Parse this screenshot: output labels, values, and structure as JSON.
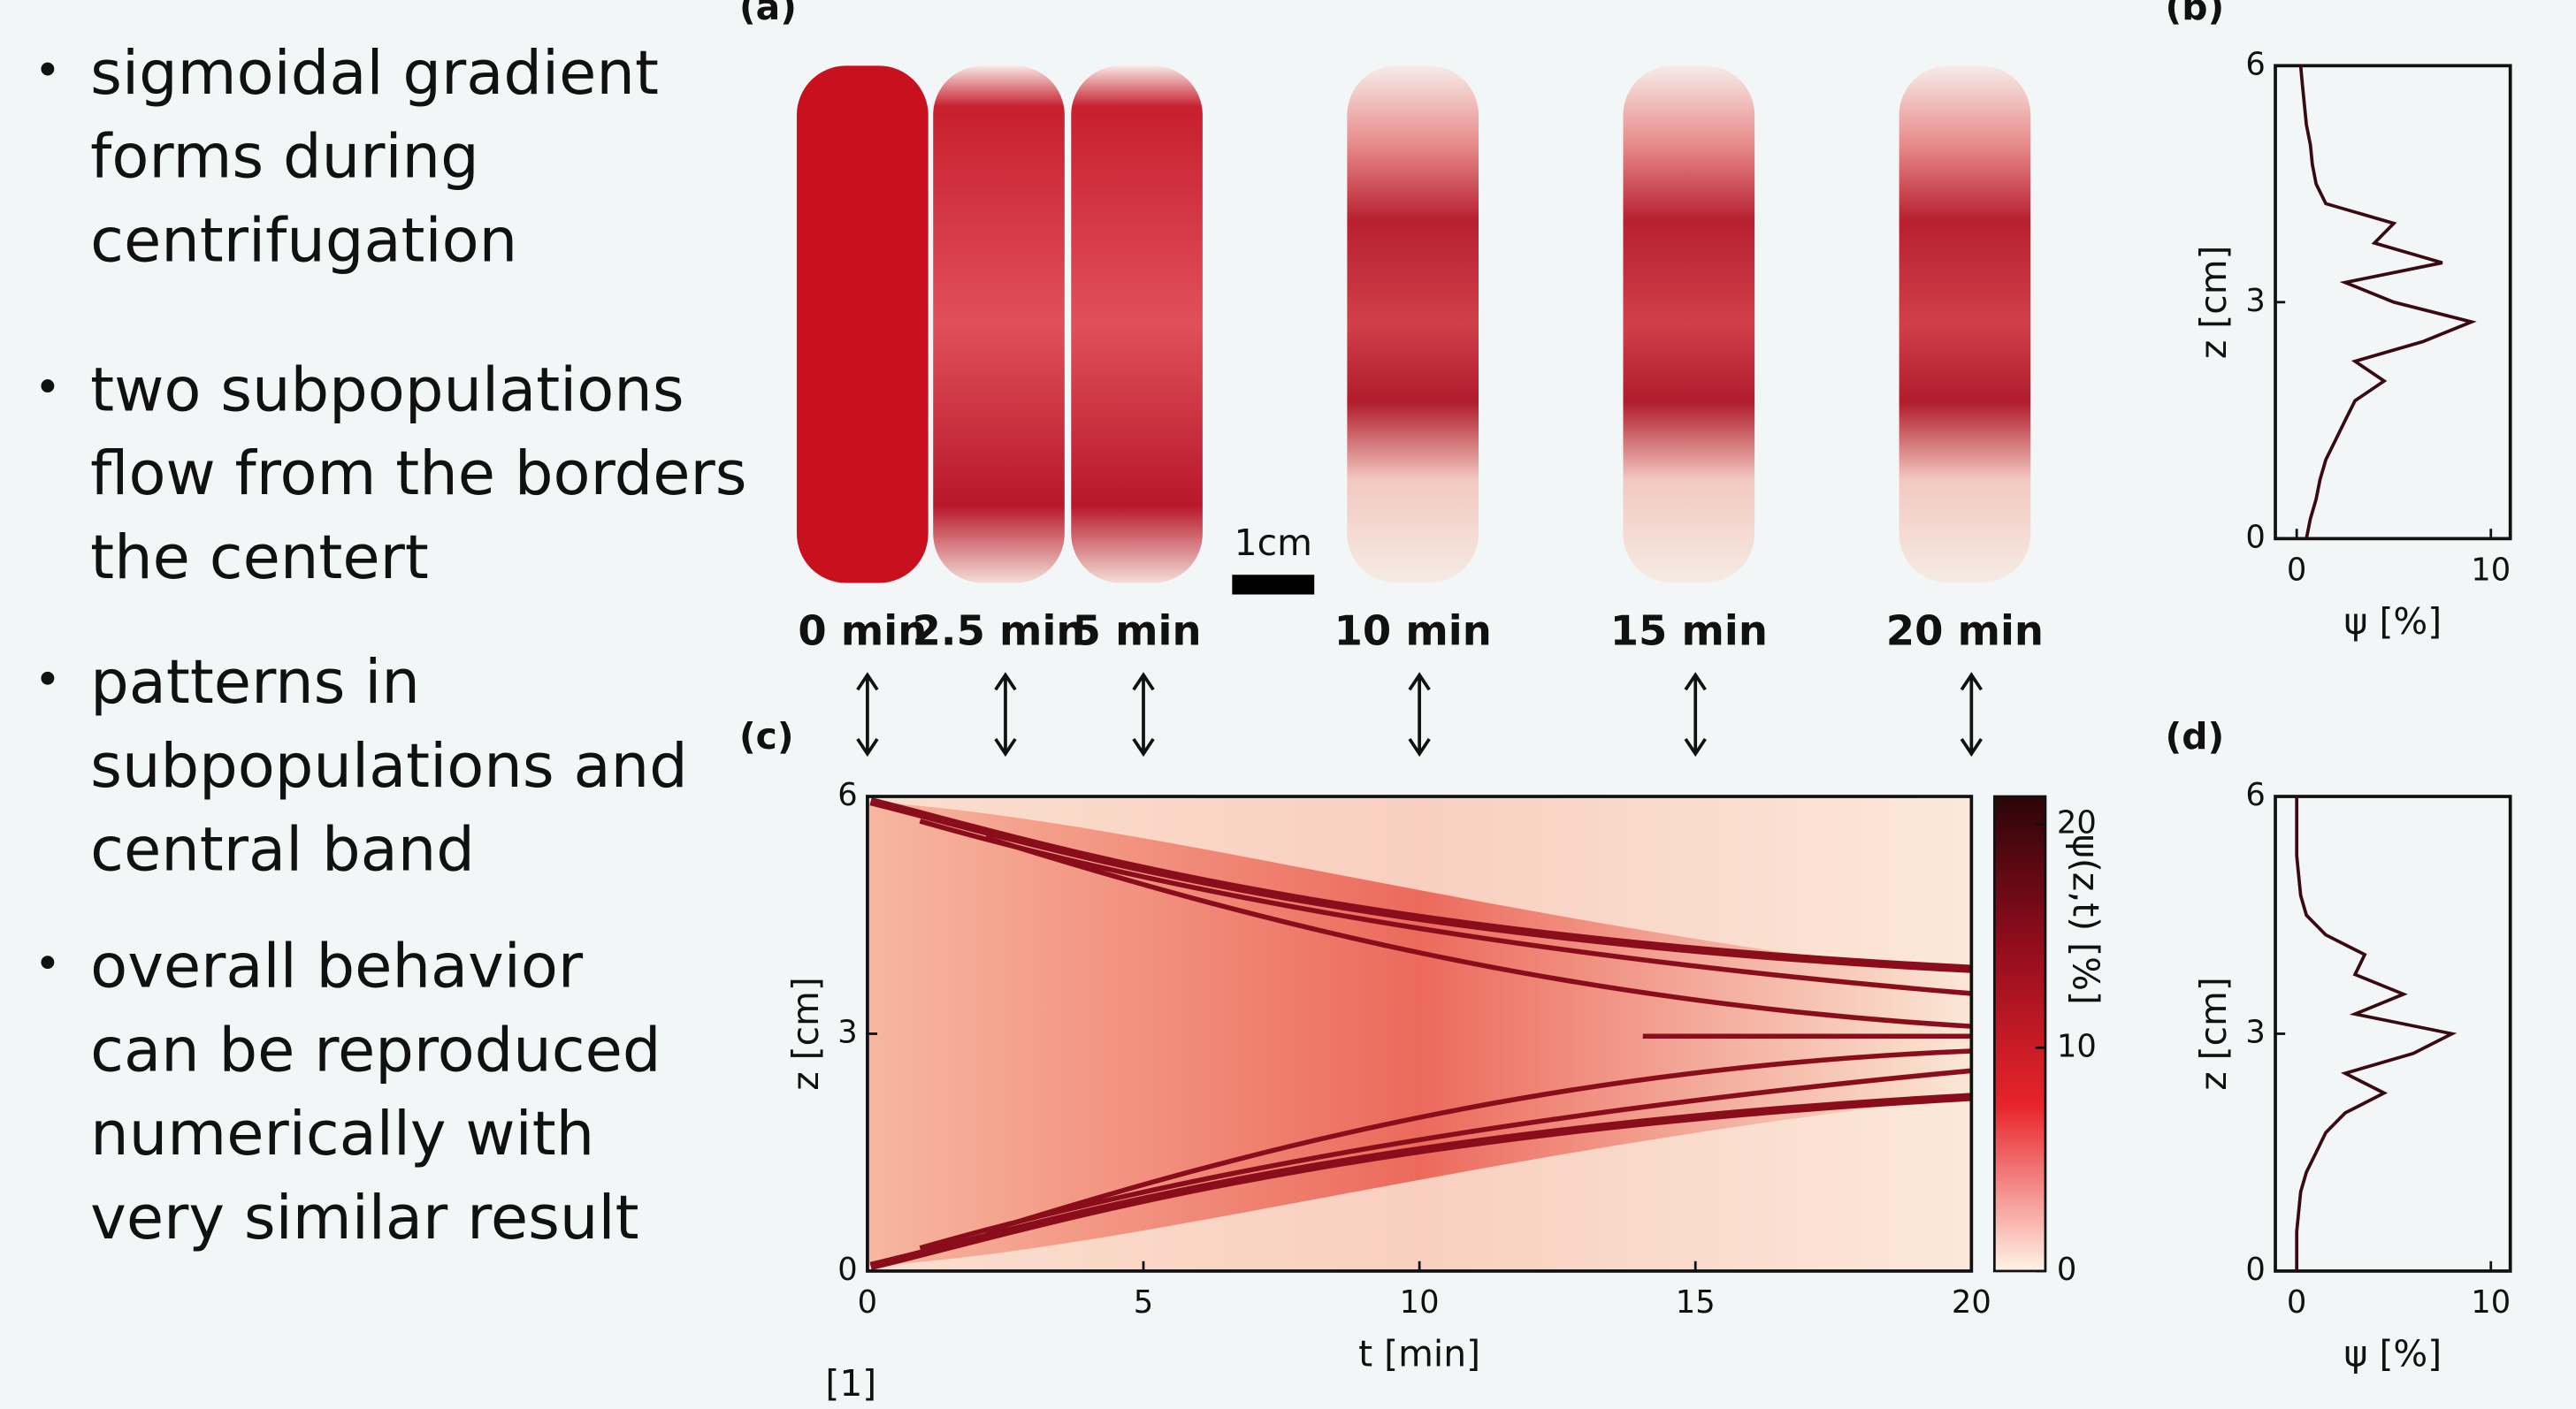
{
  "bullets": [
    [
      "sigmoidal gradient",
      "forms during",
      "centrifugation"
    ],
    [
      "two subpopulations",
      "flow from the borders",
      "the centert"
    ],
    [
      "patterns in",
      "subpopulations and",
      "central band"
    ],
    [
      "overall behavior",
      "can be reproduced",
      "numerically with",
      "very similar result"
    ]
  ],
  "figure": {
    "panel_labels": {
      "a": "(a)",
      "b": "(b)",
      "c": "(c)",
      "d": "(d)"
    },
    "tube_labels": [
      "0 min",
      "2.5 min",
      "5 min",
      "10 min",
      "15 min",
      "20 min"
    ],
    "scale_bar": "1cm",
    "citation": "[1]",
    "panel_b": {
      "xlabel": "ψ [%]",
      "ylabel": "z [cm]",
      "xlim": [
        -1.1,
        11
      ],
      "ylim": [
        0,
        6
      ],
      "xticks": [
        0,
        10
      ],
      "yticks": [
        0,
        3,
        6
      ],
      "z": [
        0,
        0.25,
        0.5,
        0.75,
        1,
        1.25,
        1.5,
        1.75,
        2,
        2.25,
        2.5,
        2.75,
        3,
        3.25,
        3.5,
        3.75,
        4,
        4.25,
        4.5,
        4.75,
        5,
        5.25,
        5.5,
        5.75,
        6
      ],
      "psi": [
        0.5,
        0.7,
        1,
        1.2,
        1.5,
        2,
        2.5,
        3,
        4.5,
        3,
        6.5,
        9,
        5,
        2.5,
        7.5,
        4,
        5,
        1.5,
        1,
        0.8,
        0.7,
        0.5,
        0.4,
        0.3,
        0.2
      ]
    },
    "panel_c": {
      "xlabel": "t [min]",
      "ylabel": "z [cm]",
      "colorbar_label": "ψ(z,t) [%]",
      "xlim": [
        0,
        20
      ],
      "ylim": [
        0,
        6
      ],
      "xticks": [
        0,
        5,
        10,
        15,
        20
      ],
      "yticks": [
        0,
        3,
        6
      ],
      "colorbar_lim": [
        0,
        21.25
      ],
      "colorbar_ticks": [
        0,
        10,
        20
      ]
    },
    "panel_d": {
      "xlabel": "ψ [%]",
      "ylabel": "z [cm]",
      "xlim": [
        -1.1,
        11
      ],
      "ylim": [
        0,
        6
      ],
      "xticks": [
        0,
        10
      ],
      "yticks": [
        0,
        3,
        6
      ],
      "z": [
        0,
        0.25,
        0.5,
        0.75,
        1,
        1.25,
        1.5,
        1.75,
        2,
        2.25,
        2.5,
        2.75,
        3,
        3.25,
        3.5,
        3.75,
        4,
        4.25,
        4.5,
        4.75,
        5,
        5.25,
        5.5,
        5.75,
        6
      ],
      "psi": [
        0,
        0,
        0,
        0.1,
        0.2,
        0.5,
        1,
        1.5,
        2.5,
        4.5,
        2.5,
        6,
        8,
        3,
        5.5,
        3,
        3.5,
        1.5,
        0.5,
        0.2,
        0.1,
        0,
        0,
        0,
        0
      ]
    }
  }
}
